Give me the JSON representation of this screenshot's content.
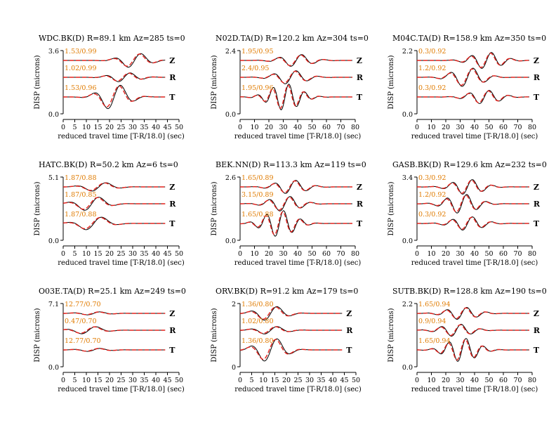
{
  "xlabel": "reduced travel time [T-R/18.0] (sec)",
  "ylabel": "DISP (microns)",
  "chart_data": [
    {
      "type": "line",
      "title": "WDC.BK(D) R=89.1 km Az=285 ts=0",
      "ymax_label": "3.6",
      "ymin_label": "0.0",
      "xlim": [
        0,
        50
      ],
      "xticks": [
        "0",
        "5",
        "10",
        "15",
        "20",
        "25",
        "30",
        "35",
        "40",
        "45",
        "50"
      ],
      "traces": [
        {
          "component": "Z",
          "annotation": "1.53/0.99",
          "dur": 44,
          "amp": 0.55,
          "phase": 0.7,
          "period": 12
        },
        {
          "component": "R",
          "annotation": "1.02/0.99",
          "dur": 44,
          "amp": 0.35,
          "phase": 0.6,
          "period": 11
        },
        {
          "component": "T",
          "annotation": "1.53/0.96",
          "dur": 44,
          "amp": 0.95,
          "phase": 0.5,
          "period": 12
        }
      ]
    },
    {
      "type": "line",
      "title": "N02D.TA(D) R=120.2 km Az=304 ts=0",
      "ymax_label": "2.4",
      "ymin_label": "0.0",
      "xlim": [
        0,
        80
      ],
      "xticks": [
        "0",
        "10",
        "20",
        "30",
        "40",
        "50",
        "60",
        "70",
        "80"
      ],
      "traces": [
        {
          "component": "Z",
          "annotation": "1.95/0.95",
          "dur": 78,
          "amp": 0.45,
          "phase": 0.5,
          "period": 16
        },
        {
          "component": "R",
          "annotation": "2.4/0.95",
          "dur": 78,
          "amp": 0.5,
          "phase": 0.45,
          "period": 16
        },
        {
          "component": "T",
          "annotation": "1.95/0.96",
          "dur": 78,
          "amp": 0.95,
          "phase": 0.4,
          "period": 11
        }
      ]
    },
    {
      "type": "line",
      "title": "M04C.TA(D) R=158.9 km Az=350 ts=0",
      "ymax_label": "2.2",
      "ymin_label": "0.0",
      "xlim": [
        0,
        80
      ],
      "xticks": [
        "0",
        "10",
        "20",
        "30",
        "40",
        "50",
        "60",
        "70",
        "80"
      ],
      "traces": [
        {
          "component": "Z",
          "annotation": "0.3/0.92",
          "dur": 78,
          "amp": 0.6,
          "phase": 0.62,
          "period": 14
        },
        {
          "component": "R",
          "annotation": "1.2/0.92",
          "dur": 78,
          "amp": 0.7,
          "phase": 0.45,
          "period": 16
        },
        {
          "component": "T",
          "annotation": "0.3/0.92",
          "dur": 78,
          "amp": 0.5,
          "phase": 0.6,
          "period": 14
        }
      ]
    },
    {
      "type": "line",
      "title": "HATC.BK(D) R=50.2 km Az=6 ts=0",
      "ymax_label": "5.1",
      "ymin_label": "0.0",
      "xlim": [
        0,
        50
      ],
      "xticks": [
        "0",
        "5",
        "10",
        "15",
        "20",
        "25",
        "30",
        "35",
        "40",
        "45",
        "50"
      ],
      "traces": [
        {
          "component": "Z",
          "annotation": "1.87/0.88",
          "dur": 44,
          "amp": 0.35,
          "phase": 0.35,
          "period": 14
        },
        {
          "component": "R",
          "annotation": "1.87/0.85",
          "dur": 44,
          "amp": 0.55,
          "phase": 0.28,
          "period": 14
        },
        {
          "component": "T",
          "annotation": "1.87/0.88",
          "dur": 44,
          "amp": 0.55,
          "phase": 0.3,
          "period": 16
        }
      ]
    },
    {
      "type": "line",
      "title": "BEK.NN(D) R=113.3 km Az=119 ts=0",
      "ymax_label": "2.6",
      "ymin_label": "0.0",
      "xlim": [
        0,
        80
      ],
      "xticks": [
        "0",
        "10",
        "20",
        "30",
        "40",
        "50",
        "60",
        "70",
        "80"
      ],
      "traces": [
        {
          "component": "Z",
          "annotation": "1.65/0.89",
          "dur": 78,
          "amp": 0.5,
          "phase": 0.45,
          "period": 15
        },
        {
          "component": "R",
          "annotation": "3.15/0.89",
          "dur": 78,
          "amp": 0.55,
          "phase": 0.4,
          "period": 15
        },
        {
          "component": "T",
          "annotation": "1.65/0.88",
          "dur": 78,
          "amp": 0.95,
          "phase": 0.35,
          "period": 12
        }
      ]
    },
    {
      "type": "line",
      "title": "GASB.BK(D) R=129.6 km Az=232 ts=0",
      "ymax_label": "3.4",
      "ymin_label": "0.0",
      "xlim": [
        0,
        80
      ],
      "xticks": [
        "0",
        "10",
        "20",
        "30",
        "40",
        "50",
        "60",
        "70",
        "80"
      ],
      "traces": [
        {
          "component": "Z",
          "annotation": "0.3/0.92",
          "dur": 78,
          "amp": 0.55,
          "phase": 0.45,
          "period": 14
        },
        {
          "component": "R",
          "annotation": "1.2/0.92",
          "dur": 78,
          "amp": 0.7,
          "phase": 0.4,
          "period": 14
        },
        {
          "component": "T",
          "annotation": "0.3/0.92",
          "dur": 78,
          "amp": 0.5,
          "phase": 0.45,
          "period": 14
        }
      ]
    },
    {
      "type": "line",
      "title": "O03E.TA(D) R=25.1 km Az=249 ts=0",
      "ymax_label": "7.1",
      "ymin_label": "0.0",
      "xlim": [
        0,
        50
      ],
      "xticks": [
        "0",
        "5",
        "10",
        "15",
        "20",
        "25",
        "30",
        "35",
        "40",
        "45",
        "50"
      ],
      "traces": [
        {
          "component": "Z",
          "annotation": "12.77/0.70",
          "dur": 44,
          "amp": 0.12,
          "phase": 0.3,
          "period": 12
        },
        {
          "component": "R",
          "annotation": "0.47/0.70",
          "dur": 44,
          "amp": 0.3,
          "phase": 0.25,
          "period": 14
        },
        {
          "component": "T",
          "annotation": "12.77/0.70",
          "dur": 44,
          "amp": 0.12,
          "phase": 0.3,
          "period": 12
        }
      ]
    },
    {
      "type": "line",
      "title": "ORV.BK(D) R=91.2 km Az=179 ts=0",
      "ymax_label": "2",
      "ymin_label": "0",
      "xlim": [
        0,
        50
      ],
      "xticks": [
        "0",
        "5",
        "10",
        "15",
        "20",
        "25",
        "30",
        "35",
        "40",
        "45",
        "50"
      ],
      "traces": [
        {
          "component": "Z",
          "annotation": "1.36/0.80",
          "dur": 44,
          "amp": 0.55,
          "phase": 0.3,
          "period": 12
        },
        {
          "component": "R",
          "annotation": "1.02/0.80",
          "dur": 44,
          "amp": 0.3,
          "phase": 0.3,
          "period": 12
        },
        {
          "component": "T",
          "annotation": "1.36/0.80",
          "dur": 44,
          "amp": 0.9,
          "phase": 0.3,
          "period": 12
        }
      ]
    },
    {
      "type": "line",
      "title": "SUTB.BK(D) R=128.8 km Az=190 ts=0",
      "ymax_label": "2.2",
      "ymin_label": "0.0",
      "xlim": [
        0,
        80
      ],
      "xticks": [
        "0",
        "10",
        "20",
        "30",
        "40",
        "50",
        "60",
        "70",
        "80"
      ],
      "traces": [
        {
          "component": "Z",
          "annotation": "1.65/0.94",
          "dur": 78,
          "amp": 0.45,
          "phase": 0.4,
          "period": 14
        },
        {
          "component": "R",
          "annotation": "0.9/0.94",
          "dur": 78,
          "amp": 0.45,
          "phase": 0.35,
          "period": 14
        },
        {
          "component": "T",
          "annotation": "1.65/0.94",
          "dur": 78,
          "amp": 0.85,
          "phase": 0.4,
          "period": 12
        }
      ]
    }
  ]
}
